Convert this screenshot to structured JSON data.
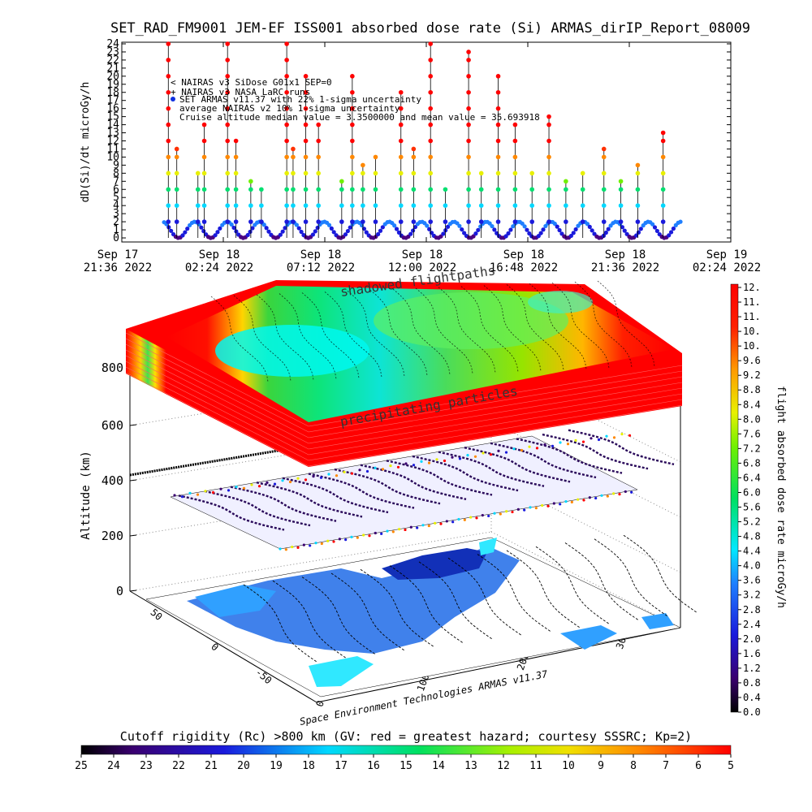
{
  "title": "SET_RAD_FM9001  JEM-EF ISS001 absorbed dose rate (Si) ARMAS_dirIP_Report_08009",
  "top_plot": {
    "type": "scatter",
    "ylabel": "dD(Si)/dt microGy/h",
    "ylim": [
      0,
      24
    ],
    "y_ticks": [
      "0",
      "1",
      "2",
      "3",
      "4",
      "5",
      "6",
      "7",
      "8",
      "9",
      "10",
      "11",
      "12",
      "13",
      "14",
      "15",
      "16",
      "17",
      "18",
      "19",
      "20",
      "21",
      "22",
      "23",
      "24"
    ],
    "x_ticks": [
      {
        "day": "Sep 17",
        "time": "21:36 2022"
      },
      {
        "day": "Sep 18",
        "time": "02:24 2022"
      },
      {
        "day": "Sep 18",
        "time": "07:12 2022"
      },
      {
        "day": "Sep 18",
        "time": "12:00 2022"
      },
      {
        "day": "Sep 18",
        "time": "16:48 2022"
      },
      {
        "day": "Sep 18",
        "time": "21:36 2022"
      },
      {
        "day": "Sep 19",
        "time": "02:24 2022"
      }
    ],
    "legend": [
      "< NAIRAS v3 SiDose G01x1 SEP=0",
      "+ NAIRAS v3 NASA LaRC runs",
      "SET ARMAS v11.37 with 22% 1-sigma uncertainty",
      "average NAIRAS v2 10% 1-sigma uncertainty",
      "Cruise altitude median value = 3.3500000 and mean value = 35.693918"
    ],
    "legend_dot_color": "#1030e0"
  },
  "chart_data": {
    "type": "scatter",
    "title": "SET_RAD_FM9001  JEM-EF ISS001 absorbed dose rate (Si) ARMAS_dirIP_Report_08009",
    "xlabel": "",
    "ylabel": "dD(Si)/dt microGy/h",
    "ylim": [
      0,
      24
    ],
    "x_unit": "hours since Sep 17 21:36 2022",
    "xlim": [
      0,
      28.8
    ],
    "peaks": [
      {
        "t": 2.2,
        "v": 24
      },
      {
        "t": 2.6,
        "v": 11
      },
      {
        "t": 3.6,
        "v": 8
      },
      {
        "t": 3.9,
        "v": 14
      },
      {
        "t": 5.0,
        "v": 24
      },
      {
        "t": 5.4,
        "v": 12
      },
      {
        "t": 6.1,
        "v": 7
      },
      {
        "t": 6.6,
        "v": 6
      },
      {
        "t": 7.8,
        "v": 24
      },
      {
        "t": 8.1,
        "v": 11
      },
      {
        "t": 8.7,
        "v": 20
      },
      {
        "t": 9.3,
        "v": 14
      },
      {
        "t": 10.4,
        "v": 7
      },
      {
        "t": 10.9,
        "v": 20
      },
      {
        "t": 11.4,
        "v": 9
      },
      {
        "t": 12.0,
        "v": 10
      },
      {
        "t": 13.2,
        "v": 18
      },
      {
        "t": 13.8,
        "v": 11
      },
      {
        "t": 14.6,
        "v": 24
      },
      {
        "t": 15.3,
        "v": 6
      },
      {
        "t": 16.4,
        "v": 23
      },
      {
        "t": 17.0,
        "v": 8
      },
      {
        "t": 17.8,
        "v": 20
      },
      {
        "t": 18.6,
        "v": 14
      },
      {
        "t": 19.4,
        "v": 8
      },
      {
        "t": 20.2,
        "v": 15
      },
      {
        "t": 21.0,
        "v": 7
      },
      {
        "t": 21.8,
        "v": 8
      },
      {
        "t": 22.8,
        "v": 11
      },
      {
        "t": 23.6,
        "v": 7
      },
      {
        "t": 24.4,
        "v": 9
      },
      {
        "t": 25.6,
        "v": 13
      }
    ],
    "baseline": {
      "low": 0,
      "high": 2
    }
  },
  "dose_colorbar": {
    "label": "flight absorbed dose rate microGy/h",
    "ticks": [
      "12.",
      "11.",
      "11.",
      "10.",
      "10.",
      "9.6",
      "9.2",
      "8.8",
      "8.4",
      "8.0",
      "7.6",
      "7.2",
      "6.8",
      "6.4",
      "6.0",
      "5.6",
      "5.2",
      "4.8",
      "4.4",
      "4.0",
      "3.6",
      "3.2",
      "2.8",
      "2.4",
      "2.0",
      "1.6",
      "1.2",
      "0.8",
      "0.4",
      "0.0"
    ]
  },
  "cutoff_colorbar": {
    "label": "Cutoff rigidity (Rc) >800 km (GV: red = greatest hazard; courtesy SSSRC; Kp=2)",
    "ticks": [
      "25",
      "24",
      "23",
      "22",
      "21",
      "20",
      "19",
      "18",
      "17",
      "16",
      "15",
      "14",
      "13",
      "12",
      "11",
      "10",
      "9",
      "8",
      "7",
      "6",
      "5"
    ]
  },
  "plot_3d": {
    "zlabel": "Altitude (km)",
    "z_ticks": [
      "0",
      "200",
      "400",
      "600",
      "800"
    ],
    "lat_ticks": [
      "50",
      "0",
      "-50"
    ],
    "lon_ticks": [
      "0",
      "100",
      "200",
      "300"
    ],
    "annotation_top": "shadowed flightpaths",
    "annotation_mid": "precipitating particles",
    "footer": "Space Environment Technologies ARMAS v11.37"
  }
}
